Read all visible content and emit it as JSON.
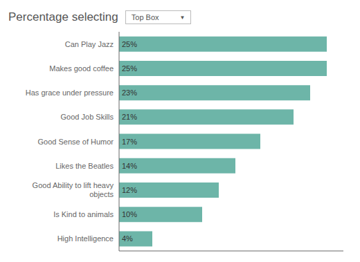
{
  "chart_data": {
    "type": "bar",
    "title": "Percentage selecting",
    "annotations": [
      "Top Box",
      "▼"
    ],
    "orientation": "horizontal",
    "categories": [
      "High Intelligence",
      "Is Kind to animals",
      "Good Ability to lift heavy\nobjects",
      "Likes the Beatles",
      "Good Sense of Humor",
      "Good Job Skills",
      "Has grace under pressure",
      "Makes good coffee",
      "Can Play Jazz"
    ],
    "values": [
      4,
      10,
      12,
      14,
      17,
      21,
      23,
      25,
      25
    ],
    "value_labels": [
      "4%",
      "10%",
      "12%",
      "14%",
      "17%",
      "21%",
      "23%",
      "25%",
      "25%"
    ],
    "data_labels": true,
    "color": "#6db5a8",
    "xlim": [
      0,
      27
    ],
    "grid": false,
    "tick_labels": "y"
  }
}
